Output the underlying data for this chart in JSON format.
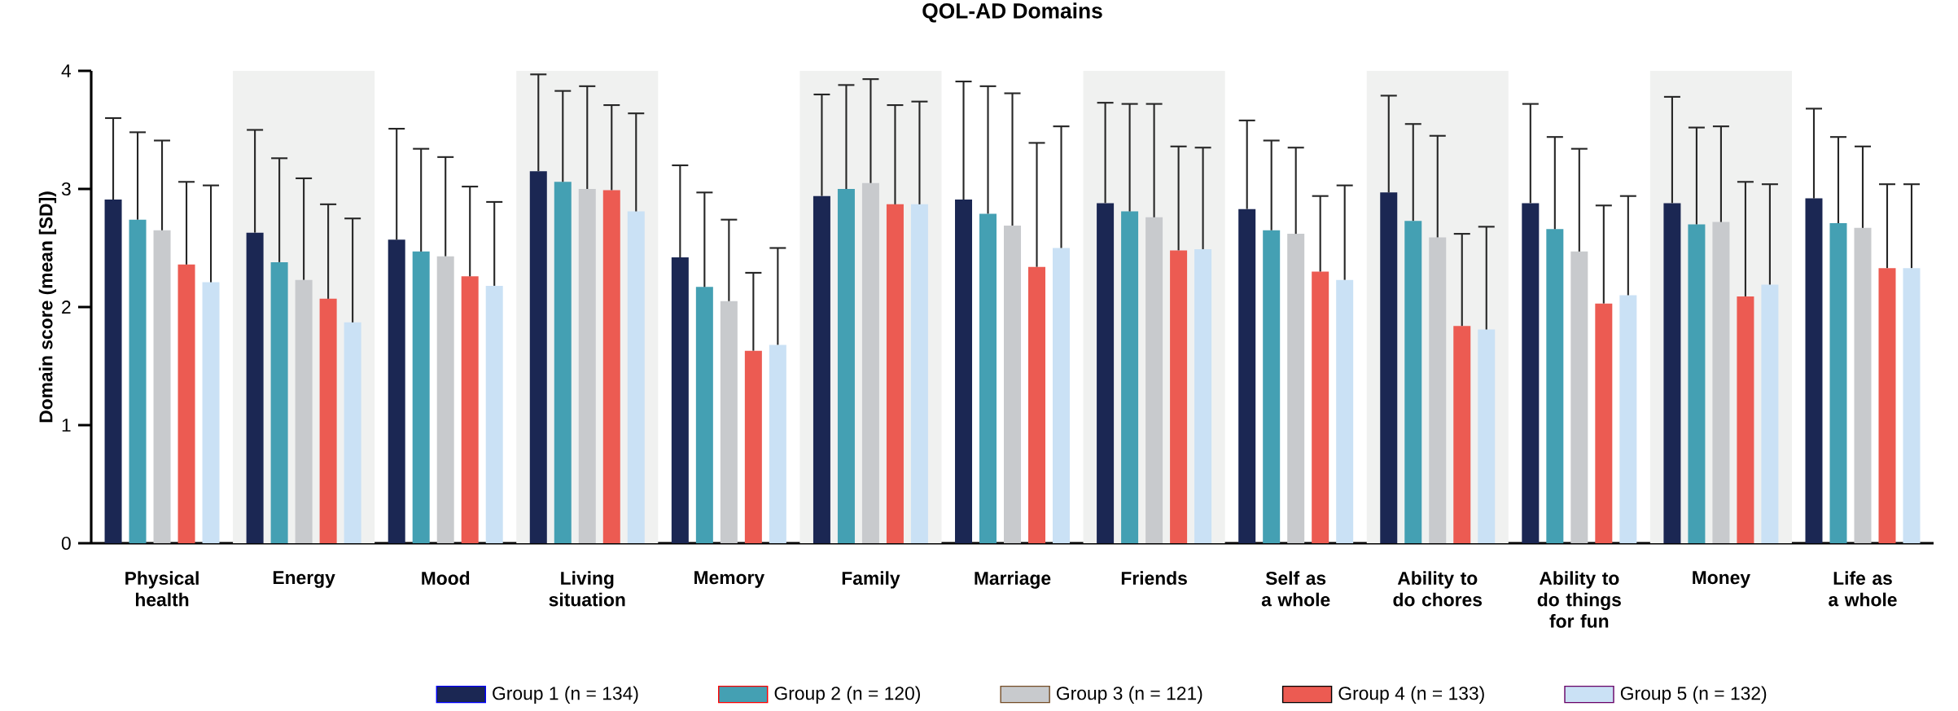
{
  "chart_data": {
    "type": "bar",
    "title": "QOL-AD Domains",
    "ylabel": "Domain score (mean [SD])",
    "categories": [
      "Physical health",
      "Energy",
      "Mood",
      "Living situation",
      "Memory",
      "Family",
      "Marriage",
      "Friends",
      "Self as a whole",
      "Ability to do chores",
      "Ability to do things for fun",
      "Money",
      "Life as a whole"
    ],
    "series": [
      {
        "name": "Group 1 (n = 134)",
        "color": "#1b2753",
        "values": [
          2.91,
          2.63,
          2.57,
          3.15,
          2.42,
          2.94,
          2.91,
          2.88,
          2.83,
          2.97,
          2.88,
          2.88,
          2.92
        ],
        "errors": [
          [
            2.91,
            3.6
          ],
          [
            2.63,
            3.5
          ],
          [
            2.57,
            3.51
          ],
          [
            3.15,
            3.97
          ],
          [
            2.42,
            3.2
          ],
          [
            2.94,
            3.8
          ],
          [
            2.91,
            3.91
          ],
          [
            2.88,
            3.73
          ],
          [
            2.83,
            3.58
          ],
          [
            2.97,
            3.79
          ],
          [
            2.88,
            3.72
          ],
          [
            2.88,
            3.78
          ],
          [
            2.92,
            3.68
          ]
        ]
      },
      {
        "name": "Group 2 (n = 120)",
        "color": "#44a0b3",
        "values": [
          2.74,
          2.38,
          2.47,
          3.06,
          2.17,
          3.0,
          2.79,
          2.81,
          2.65,
          2.73,
          2.66,
          2.7,
          2.71
        ],
        "errors": [
          [
            2.74,
            3.48
          ],
          [
            2.38,
            3.26
          ],
          [
            2.47,
            3.34
          ],
          [
            3.06,
            3.83
          ],
          [
            2.17,
            2.97
          ],
          [
            3.0,
            3.88
          ],
          [
            2.79,
            3.87
          ],
          [
            2.81,
            3.72
          ],
          [
            2.65,
            3.41
          ],
          [
            2.73,
            3.55
          ],
          [
            2.66,
            3.44
          ],
          [
            2.7,
            3.52
          ],
          [
            2.71,
            3.44
          ]
        ]
      },
      {
        "name": "Group 3 (n = 121)",
        "color": "#c8cacd",
        "values": [
          2.65,
          2.23,
          2.43,
          3.0,
          2.05,
          3.05,
          2.69,
          2.76,
          2.62,
          2.59,
          2.47,
          2.72,
          2.67
        ],
        "errors": [
          [
            2.65,
            3.41
          ],
          [
            2.23,
            3.09
          ],
          [
            2.43,
            3.27
          ],
          [
            3.0,
            3.87
          ],
          [
            2.05,
            2.74
          ],
          [
            3.05,
            3.93
          ],
          [
            2.69,
            3.81
          ],
          [
            2.76,
            3.72
          ],
          [
            2.62,
            3.35
          ],
          [
            2.59,
            3.45
          ],
          [
            2.47,
            3.34
          ],
          [
            2.72,
            3.53
          ],
          [
            2.67,
            3.36
          ]
        ]
      },
      {
        "name": "Group 4 (n = 133)",
        "color": "#ec5b52",
        "values": [
          2.36,
          2.07,
          2.26,
          2.99,
          1.63,
          2.87,
          2.34,
          2.48,
          2.3,
          1.84,
          2.03,
          2.09,
          2.33
        ],
        "errors": [
          [
            2.36,
            3.06
          ],
          [
            2.07,
            2.87
          ],
          [
            2.26,
            3.02
          ],
          [
            2.99,
            3.71
          ],
          [
            1.63,
            2.29
          ],
          [
            2.87,
            3.71
          ],
          [
            2.34,
            3.39
          ],
          [
            2.48,
            3.36
          ],
          [
            2.3,
            2.94
          ],
          [
            1.84,
            2.62
          ],
          [
            2.03,
            2.86
          ],
          [
            2.09,
            3.06
          ],
          [
            2.33,
            3.04
          ]
        ]
      },
      {
        "name": "Group 5 (n = 132)",
        "color": "#cae1f5",
        "values": [
          2.21,
          1.87,
          2.18,
          2.81,
          1.68,
          2.87,
          2.5,
          2.49,
          2.23,
          1.81,
          2.1,
          2.19,
          2.33
        ],
        "errors": [
          [
            2.21,
            3.03
          ],
          [
            1.87,
            2.75
          ],
          [
            2.18,
            2.89
          ],
          [
            2.81,
            3.64
          ],
          [
            1.68,
            2.5
          ],
          [
            2.87,
            3.74
          ],
          [
            2.5,
            3.53
          ],
          [
            2.49,
            3.35
          ],
          [
            2.23,
            3.03
          ],
          [
            1.81,
            2.68
          ],
          [
            2.1,
            2.94
          ],
          [
            2.19,
            3.04
          ],
          [
            2.33,
            3.04
          ]
        ]
      }
    ],
    "ylim": [
      0,
      4
    ],
    "yticks": [
      0,
      1,
      2,
      3,
      4
    ],
    "legend": "bottom",
    "bands": [
      {
        "axis": "x",
        "from": "Energy",
        "to": "Energy",
        "color": "#f0f1f0"
      },
      {
        "axis": "x",
        "from": "Living situation",
        "to": "Living situation",
        "color": "#f0f1f0"
      },
      {
        "axis": "x",
        "from": "Family",
        "to": "Family",
        "color": "#f0f1f0"
      },
      {
        "axis": "x",
        "from": "Friends",
        "to": "Friends",
        "color": "#f0f1f0"
      },
      {
        "axis": "x",
        "from": "Ability to do chores",
        "to": "Ability to do chores",
        "color": "#f0f1f0"
      },
      {
        "axis": "x",
        "from": "Money",
        "to": "Money",
        "color": "#f0f1f0"
      }
    ]
  }
}
